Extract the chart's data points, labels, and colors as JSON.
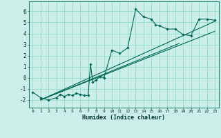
{
  "xlabel": "Humidex (Indice chaleur)",
  "bg_color": "#cceee8",
  "grid_color": "#99ddcc",
  "line_color": "#006655",
  "xlim": [
    -0.5,
    23.5
  ],
  "ylim": [
    -2.7,
    6.9
  ],
  "xticks": [
    0,
    1,
    2,
    3,
    4,
    5,
    6,
    7,
    8,
    9,
    10,
    11,
    12,
    13,
    14,
    15,
    16,
    17,
    18,
    19,
    20,
    21,
    22,
    23
  ],
  "yticks": [
    -2,
    -1,
    0,
    1,
    2,
    3,
    4,
    5,
    6
  ],
  "data_x": [
    0,
    1,
    2,
    3,
    3.5,
    4,
    4.5,
    5,
    5.5,
    6,
    6.5,
    7,
    7.3,
    7.6,
    8,
    8.5,
    9,
    10,
    11,
    12,
    13,
    14,
    15,
    15.5,
    16,
    17,
    18,
    19,
    20,
    21,
    22,
    23
  ],
  "data_y": [
    -1.3,
    -1.8,
    -2.0,
    -1.8,
    -1.5,
    -1.7,
    -1.5,
    -1.6,
    -1.4,
    -1.5,
    -1.6,
    -1.6,
    1.2,
    -0.4,
    -0.2,
    0.1,
    0.0,
    2.5,
    2.2,
    2.7,
    6.2,
    5.5,
    5.3,
    4.8,
    4.7,
    4.4,
    4.4,
    3.9,
    3.8,
    5.3,
    5.3,
    5.2
  ],
  "trend1_x": [
    1.0,
    23.0
  ],
  "trend1_y": [
    -2.0,
    5.1
  ],
  "trend2_x": [
    1.0,
    18.5
  ],
  "trend2_y": [
    -2.0,
    3.1
  ],
  "trend3_x": [
    1.0,
    23.0
  ],
  "trend3_y": [
    -2.0,
    4.2
  ]
}
